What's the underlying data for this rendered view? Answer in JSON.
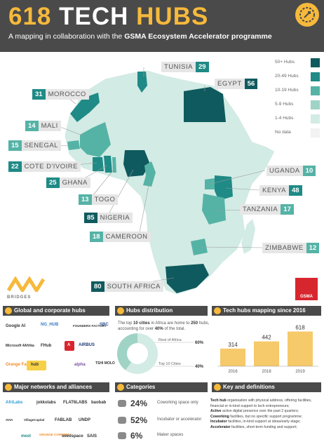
{
  "header": {
    "title_num": "618",
    "title_w1": "TECH",
    "title_w2": "HUBS",
    "subtitle_pre": "A mapping in collaboration with the",
    "subtitle_bold": "GSMA Ecosystem Accelerator programme"
  },
  "legend": [
    {
      "label": "50+ Hubs",
      "color": "#0f5a5e"
    },
    {
      "label": "20-49 Hubs",
      "color": "#1f8a86"
    },
    {
      "label": "10-19 Hubs",
      "color": "#55b3a6"
    },
    {
      "label": "5-9 Hubs",
      "color": "#9fd3c5"
    },
    {
      "label": "1-4 Hubs",
      "color": "#d2ebe4"
    },
    {
      "label": "No data",
      "color": "#f2f2f2"
    }
  ],
  "chart_data": [
    {
      "type": "choropleth",
      "countries": [
        {
          "name": "TUNISIA",
          "hubs": 29
        },
        {
          "name": "EGYPT",
          "hubs": 56
        },
        {
          "name": "MOROCCO",
          "hubs": 31
        },
        {
          "name": "MALI",
          "hubs": 14
        },
        {
          "name": "SENEGAL",
          "hubs": 15
        },
        {
          "name": "COTE D'IVOIRE",
          "hubs": 22
        },
        {
          "name": "GHANA",
          "hubs": 25
        },
        {
          "name": "TOGO",
          "hubs": 13
        },
        {
          "name": "NIGERIA",
          "hubs": 85
        },
        {
          "name": "CAMEROON",
          "hubs": 18
        },
        {
          "name": "UGANDA",
          "hubs": 10
        },
        {
          "name": "KENYA",
          "hubs": 48
        },
        {
          "name": "TANZANIA",
          "hubs": 17
        },
        {
          "name": "ZIMBABWE",
          "hubs": 12
        },
        {
          "name": "SOUTH AFRICA",
          "hubs": 80
        }
      ]
    },
    {
      "type": "pie",
      "title": "Hubs distribution",
      "slices": [
        {
          "label": "Rest of Africa",
          "value": 60,
          "display": "60%"
        },
        {
          "label": "Top 10 Cities",
          "value": 40,
          "display": "40%"
        }
      ]
    },
    {
      "type": "bar",
      "title": "Tech hubs mapping since 2016",
      "categories": [
        "2016",
        "2018",
        "2019"
      ],
      "values": [
        314,
        442,
        618
      ]
    }
  ],
  "brand": {
    "partner": "BRIDGES",
    "gsma": "GSMA"
  },
  "sections": {
    "global": "Global and corporate hubs",
    "distribution": "Hubs distribution",
    "mapping": "Tech hubs mapping since 2016",
    "networks": "Major networks and alliances",
    "categories": "Categories",
    "key": "Key and definitions"
  },
  "distribution_text": {
    "pre": "The top",
    "top10": "10 cities",
    "mid1": "in Africa are home to",
    "count": "250",
    "mid2": "hubs, accounting for over",
    "pct": "40%",
    "post": "of the total."
  },
  "global_logos": [
    "Google AI",
    "NG_HUB",
    "FOUNDERS FACTORY",
    "SBC",
    "Microsoft 4Afrika",
    "FHub",
    "A",
    "AIRBUS",
    "Orange Fab",
    "hub",
    "alpha",
    "TSHI MOLO"
  ],
  "network_logos": [
    "AfriLabs",
    "jokkolabs",
    "FLAT6LABS",
    "baobab",
    "AVIA",
    "VillageCapital",
    "FABLAB",
    "UNDP",
    "mest",
    "ORANGE CORNERS",
    "seedspace",
    "SAIS"
  ],
  "categories": [
    {
      "pct": "24%",
      "label": "Coworking space only"
    },
    {
      "pct": "52%",
      "label": "Incubator or accelerator"
    },
    {
      "pct": "6%",
      "label": "Maker spaces"
    }
  ],
  "definitions": [
    {
      "term": "Tech hub",
      "text": "organisation with physical address, offering facilities, financial or in-kind support to tech entrepreneurs;"
    },
    {
      "term": "Active",
      "text": "active digital presence over the past 2 quarters;"
    },
    {
      "term": "Coworking",
      "text": "facilities, but no specific support programme;"
    },
    {
      "term": "Incubator",
      "text": "facilities, in-kind support at ideas/early-stage;"
    },
    {
      "term": "Accelerator",
      "text": "facilities, short-term funding and support;"
    }
  ]
}
